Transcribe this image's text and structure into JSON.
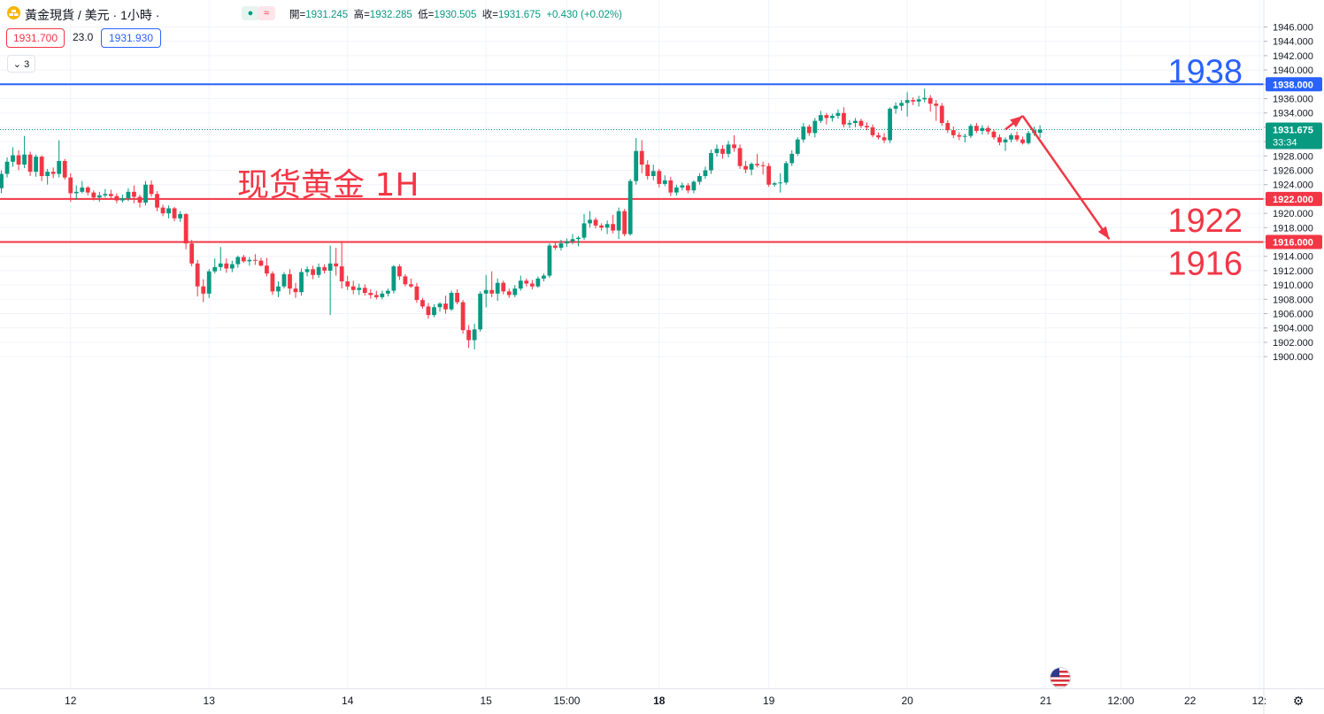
{
  "header": {
    "symbol_title": "黃金現貨 / 美元 · 1小時 ·",
    "badge_dot": "●",
    "badge_wave": "≈",
    "ohlc": [
      {
        "label": "開=",
        "value": "1931.245"
      },
      {
        "label": "高=",
        "value": "1932.285"
      },
      {
        "label": "低=",
        "value": "1930.505"
      },
      {
        "label": "收=",
        "value": "1931.675"
      },
      {
        "label": "",
        "value": "+0.430 (+0.02%)"
      }
    ],
    "sell_price": "1931.700",
    "spread": "23.0",
    "buy_price": "1931.930",
    "indicators_button": "⌄ 3"
  },
  "colors": {
    "up": "#089981",
    "down": "#f23645",
    "blue_line": "#2962ff",
    "red_line": "#f23645",
    "annotation_red": "#f23645",
    "annotation_blue": "#2962ff",
    "grid": "#f0f3fa"
  },
  "icons": {
    "symbol": "gold-coin-icon",
    "settings": "gear-icon",
    "event": "us-flag-icon"
  },
  "chart_data": {
    "type": "candlestick",
    "title": "现货黄金 1H",
    "ylim": [
      1900,
      1947
    ],
    "y_ticks": [
      "1946.000",
      "1944.000",
      "1942.000",
      "1940.000",
      "1938.000",
      "1936.000",
      "1934.000",
      "1932.000",
      "1930.000",
      "1928.000",
      "1926.000",
      "1924.000",
      "1922.000",
      "1920.000",
      "1918.000",
      "1916.000",
      "1914.000",
      "1912.000",
      "1910.000",
      "1908.000",
      "1906.000",
      "1904.000",
      "1902.000",
      "1900.000"
    ],
    "y_tick_values": [
      1946,
      1944,
      1942,
      1940,
      1938,
      1936,
      1934,
      1932,
      1930,
      1928,
      1926,
      1924,
      1922,
      1920,
      1918,
      1916,
      1914,
      1912,
      1910,
      1908,
      1906,
      1904,
      1902,
      1900
    ],
    "x_ticks": [
      {
        "label": "12",
        "bar": 12,
        "bold": false
      },
      {
        "label": "13",
        "bar": 36,
        "bold": false
      },
      {
        "label": "14",
        "bar": 60,
        "bold": false
      },
      {
        "label": "15",
        "bar": 84,
        "bold": false
      },
      {
        "label": "15:00",
        "bar": 98,
        "bold": false
      },
      {
        "label": "18",
        "bar": 114,
        "bold": true
      },
      {
        "label": "19",
        "bar": 133,
        "bold": false
      },
      {
        "label": "20",
        "bar": 157,
        "bold": false
      },
      {
        "label": "21",
        "bar": 181,
        "bold": false
      },
      {
        "label": "12:00",
        "bar": 194,
        "bold": false
      },
      {
        "label": "22",
        "bar": 206,
        "bold": false
      },
      {
        "label": "12:",
        "bar": 218,
        "bold": false
      }
    ],
    "candles": [
      [
        1923.5,
        1926.0,
        1922.8,
        1925.5
      ],
      [
        1925.5,
        1927.8,
        1925.0,
        1927.2
      ],
      [
        1927.2,
        1929.2,
        1926.5,
        1928.1
      ],
      [
        1928.1,
        1928.8,
        1926.0,
        1926.8
      ],
      [
        1926.8,
        1930.8,
        1926.3,
        1928.2
      ],
      [
        1928.2,
        1928.6,
        1925.2,
        1925.8
      ],
      [
        1925.8,
        1928.2,
        1925.1,
        1927.9
      ],
      [
        1927.9,
        1928.1,
        1924.5,
        1925.2
      ],
      [
        1925.2,
        1926.2,
        1924.0,
        1925.8
      ],
      [
        1925.8,
        1926.4,
        1924.9,
        1925.5
      ],
      [
        1925.5,
        1930.2,
        1925.0,
        1927.3
      ],
      [
        1927.3,
        1927.6,
        1924.7,
        1925.0
      ],
      [
        1925.0,
        1925.6,
        1921.6,
        1922.8
      ],
      [
        1922.8,
        1923.9,
        1921.9,
        1923.0
      ],
      [
        1923.0,
        1924.5,
        1922.8,
        1923.6
      ],
      [
        1923.6,
        1923.8,
        1922.5,
        1922.9
      ],
      [
        1922.9,
        1923.2,
        1921.8,
        1922.2
      ],
      [
        1922.2,
        1923.0,
        1921.6,
        1922.5
      ],
      [
        1922.5,
        1923.4,
        1922.2,
        1922.7
      ],
      [
        1922.7,
        1923.3,
        1922.0,
        1922.4
      ],
      [
        1922.4,
        1922.8,
        1921.4,
        1921.8
      ],
      [
        1921.8,
        1922.6,
        1921.5,
        1922.1
      ],
      [
        1922.1,
        1923.5,
        1921.7,
        1923.0
      ],
      [
        1923.0,
        1923.9,
        1921.4,
        1922.3
      ],
      [
        1922.3,
        1922.6,
        1920.8,
        1921.5
      ],
      [
        1921.5,
        1924.5,
        1921.1,
        1924.0
      ],
      [
        1924.0,
        1924.6,
        1922.3,
        1922.7
      ],
      [
        1922.7,
        1923.1,
        1920.3,
        1920.8
      ],
      [
        1920.8,
        1921.2,
        1919.6,
        1920.0
      ],
      [
        1920.0,
        1921.1,
        1919.3,
        1920.7
      ],
      [
        1920.7,
        1920.9,
        1918.9,
        1919.3
      ],
      [
        1919.3,
        1920.3,
        1918.8,
        1919.9
      ],
      [
        1919.9,
        1920.0,
        1915.0,
        1915.8
      ],
      [
        1915.8,
        1916.3,
        1912.6,
        1913.0
      ],
      [
        1913.0,
        1913.5,
        1908.4,
        1909.8
      ],
      [
        1909.8,
        1910.8,
        1907.6,
        1908.8
      ],
      [
        1908.8,
        1912.2,
        1908.2,
        1911.9
      ],
      [
        1911.9,
        1913.7,
        1911.6,
        1912.5
      ],
      [
        1912.5,
        1915.3,
        1912.0,
        1913.0
      ],
      [
        1913.0,
        1913.7,
        1911.7,
        1912.3
      ],
      [
        1912.3,
        1913.4,
        1911.8,
        1912.9
      ],
      [
        1912.9,
        1914.1,
        1912.4,
        1913.9
      ],
      [
        1913.9,
        1914.2,
        1913.1,
        1913.3
      ],
      [
        1913.3,
        1913.9,
        1912.7,
        1913.5
      ],
      [
        1913.5,
        1914.3,
        1912.8,
        1913.4
      ],
      [
        1913.4,
        1913.8,
        1912.6,
        1912.7
      ],
      [
        1912.7,
        1913.8,
        1911.2,
        1911.6
      ],
      [
        1911.6,
        1911.9,
        1908.6,
        1909.1
      ],
      [
        1909.1,
        1910.5,
        1908.3,
        1909.8
      ],
      [
        1909.8,
        1911.8,
        1909.5,
        1911.5
      ],
      [
        1911.5,
        1912.2,
        1908.7,
        1909.5
      ],
      [
        1909.5,
        1910.3,
        1908.2,
        1909.0
      ],
      [
        1909.0,
        1912.3,
        1908.5,
        1911.8
      ],
      [
        1911.8,
        1912.6,
        1911.2,
        1912.2
      ],
      [
        1912.2,
        1912.7,
        1910.8,
        1911.4
      ],
      [
        1911.4,
        1913.0,
        1911.0,
        1912.5
      ],
      [
        1912.5,
        1912.9,
        1911.6,
        1912.0
      ],
      [
        1912.0,
        1915.5,
        1905.8,
        1913.0
      ],
      [
        1913.0,
        1915.2,
        1911.3,
        1912.6
      ],
      [
        1912.6,
        1915.9,
        1909.5,
        1910.5
      ],
      [
        1910.5,
        1911.3,
        1909.3,
        1909.8
      ],
      [
        1909.8,
        1910.6,
        1908.7,
        1909.3
      ],
      [
        1909.3,
        1910.2,
        1908.6,
        1909.6
      ],
      [
        1909.6,
        1910.1,
        1908.5,
        1908.9
      ],
      [
        1908.9,
        1909.4,
        1908.1,
        1908.6
      ],
      [
        1908.6,
        1909.2,
        1908.0,
        1908.3
      ],
      [
        1908.3,
        1909.2,
        1908.0,
        1908.8
      ],
      [
        1908.8,
        1909.5,
        1908.4,
        1909.2
      ],
      [
        1909.2,
        1912.8,
        1908.8,
        1912.6
      ],
      [
        1912.6,
        1912.9,
        1910.7,
        1911.2
      ],
      [
        1911.2,
        1911.5,
        1909.8,
        1910.1
      ],
      [
        1910.1,
        1910.9,
        1909.6,
        1909.8
      ],
      [
        1909.8,
        1910.3,
        1907.5,
        1907.9
      ],
      [
        1907.9,
        1908.2,
        1906.7,
        1907.0
      ],
      [
        1907.0,
        1907.5,
        1905.3,
        1905.8
      ],
      [
        1905.8,
        1907.3,
        1905.5,
        1906.9
      ],
      [
        1906.9,
        1907.6,
        1906.3,
        1907.4
      ],
      [
        1907.4,
        1908.5,
        1906.0,
        1906.6
      ],
      [
        1906.6,
        1909.2,
        1906.4,
        1908.9
      ],
      [
        1908.9,
        1909.4,
        1907.3,
        1907.6
      ],
      [
        1907.6,
        1907.9,
        1903.2,
        1903.7
      ],
      [
        1903.7,
        1904.4,
        1901.2,
        1902.3
      ],
      [
        1902.3,
        1904.6,
        1901.0,
        1903.8
      ],
      [
        1903.8,
        1909.1,
        1903.5,
        1908.8
      ],
      [
        1908.8,
        1911.4,
        1906.9,
        1909.3
      ],
      [
        1909.3,
        1911.9,
        1908.3,
        1908.8
      ],
      [
        1908.8,
        1910.9,
        1907.8,
        1910.3
      ],
      [
        1910.3,
        1910.6,
        1908.7,
        1909.1
      ],
      [
        1909.1,
        1909.5,
        1908.2,
        1908.6
      ],
      [
        1908.6,
        1910.0,
        1908.3,
        1909.5
      ],
      [
        1909.5,
        1911.3,
        1909.2,
        1910.6
      ],
      [
        1910.6,
        1910.9,
        1909.8,
        1910.2
      ],
      [
        1910.2,
        1910.7,
        1909.4,
        1909.8
      ],
      [
        1909.8,
        1911.2,
        1909.6,
        1910.9
      ],
      [
        1910.9,
        1911.6,
        1910.5,
        1911.3
      ],
      [
        1911.3,
        1915.8,
        1911.0,
        1915.5
      ],
      [
        1915.5,
        1915.9,
        1914.9,
        1915.2
      ],
      [
        1915.2,
        1916.3,
        1914.8,
        1915.8
      ],
      [
        1915.8,
        1916.5,
        1915.3,
        1916.1
      ],
      [
        1916.1,
        1917.1,
        1915.7,
        1916.4
      ],
      [
        1916.4,
        1916.8,
        1915.4,
        1916.6
      ],
      [
        1916.6,
        1919.9,
        1916.3,
        1918.6
      ],
      [
        1918.6,
        1920.3,
        1918.0,
        1919.1
      ],
      [
        1919.1,
        1919.4,
        1917.9,
        1918.3
      ],
      [
        1918.3,
        1918.6,
        1917.6,
        1918.0
      ],
      [
        1918.0,
        1919.0,
        1917.1,
        1918.5
      ],
      [
        1918.5,
        1919.8,
        1917.2,
        1917.6
      ],
      [
        1917.6,
        1920.8,
        1916.4,
        1920.3
      ],
      [
        1920.3,
        1920.6,
        1916.8,
        1917.1
      ],
      [
        1917.1,
        1924.8,
        1916.9,
        1924.5
      ],
      [
        1924.5,
        1930.5,
        1924.0,
        1928.7
      ],
      [
        1928.7,
        1930.2,
        1925.6,
        1926.8
      ],
      [
        1926.8,
        1927.4,
        1924.7,
        1925.2
      ],
      [
        1925.2,
        1926.8,
        1924.6,
        1925.9
      ],
      [
        1925.9,
        1926.2,
        1923.6,
        1924.1
      ],
      [
        1924.1,
        1925.3,
        1923.8,
        1924.6
      ],
      [
        1924.6,
        1925.1,
        1922.4,
        1922.9
      ],
      [
        1922.9,
        1924.0,
        1922.5,
        1923.6
      ],
      [
        1923.6,
        1924.3,
        1923.2,
        1923.9
      ],
      [
        1923.9,
        1924.2,
        1922.8,
        1923.2
      ],
      [
        1923.2,
        1924.6,
        1922.8,
        1924.4
      ],
      [
        1924.4,
        1925.6,
        1924.0,
        1925.2
      ],
      [
        1925.2,
        1926.5,
        1924.8,
        1926.0
      ],
      [
        1926.0,
        1928.9,
        1925.5,
        1928.4
      ],
      [
        1928.4,
        1929.6,
        1927.9,
        1929.0
      ],
      [
        1929.0,
        1929.5,
        1927.6,
        1928.3
      ],
      [
        1928.3,
        1930.1,
        1927.8,
        1929.6
      ],
      [
        1929.6,
        1930.9,
        1928.6,
        1929.1
      ],
      [
        1929.1,
        1929.6,
        1926.2,
        1926.6
      ],
      [
        1926.6,
        1927.3,
        1925.6,
        1926.1
      ],
      [
        1926.1,
        1927.1,
        1925.3,
        1926.9
      ],
      [
        1926.9,
        1928.3,
        1926.4,
        1926.7
      ],
      [
        1926.7,
        1927.2,
        1925.4,
        1926.6
      ],
      [
        1926.6,
        1927.0,
        1923.7,
        1924.0
      ],
      [
        1924.0,
        1924.4,
        1923.7,
        1924.2
      ],
      [
        1924.2,
        1925.6,
        1922.9,
        1924.3
      ],
      [
        1924.3,
        1927.3,
        1924.0,
        1927.0
      ],
      [
        1927.0,
        1928.8,
        1926.6,
        1928.3
      ],
      [
        1928.3,
        1930.6,
        1928.0,
        1930.3
      ],
      [
        1930.3,
        1932.6,
        1929.9,
        1932.1
      ],
      [
        1932.1,
        1932.4,
        1930.8,
        1931.2
      ],
      [
        1931.2,
        1933.3,
        1930.6,
        1932.9
      ],
      [
        1932.9,
        1934.3,
        1932.6,
        1933.7
      ],
      [
        1933.7,
        1934.0,
        1932.4,
        1933.3
      ],
      [
        1933.3,
        1933.9,
        1932.8,
        1933.6
      ],
      [
        1933.6,
        1934.5,
        1933.2,
        1934.0
      ],
      [
        1934.0,
        1934.8,
        1932.0,
        1932.4
      ],
      [
        1932.4,
        1933.0,
        1931.9,
        1932.6
      ],
      [
        1932.6,
        1933.3,
        1932.0,
        1932.9
      ],
      [
        1932.9,
        1933.2,
        1931.9,
        1932.2
      ],
      [
        1932.2,
        1932.7,
        1931.6,
        1932.0
      ],
      [
        1932.0,
        1932.4,
        1930.6,
        1930.9
      ],
      [
        1930.9,
        1931.3,
        1930.3,
        1930.6
      ],
      [
        1930.6,
        1931.2,
        1929.8,
        1930.2
      ],
      [
        1930.2,
        1934.8,
        1929.8,
        1934.6
      ],
      [
        1934.6,
        1935.5,
        1933.9,
        1935.0
      ],
      [
        1935.0,
        1935.8,
        1934.3,
        1935.4
      ],
      [
        1935.4,
        1936.9,
        1933.5,
        1935.8
      ],
      [
        1935.8,
        1936.2,
        1935.1,
        1935.6
      ],
      [
        1935.6,
        1936.4,
        1934.9,
        1935.9
      ],
      [
        1935.9,
        1937.4,
        1935.5,
        1936.1
      ],
      [
        1936.1,
        1936.5,
        1934.2,
        1935.3
      ],
      [
        1935.3,
        1935.8,
        1932.9,
        1935.0
      ],
      [
        1935.0,
        1935.4,
        1932.2,
        1932.6
      ],
      [
        1932.6,
        1933.0,
        1931.2,
        1931.6
      ],
      [
        1931.6,
        1932.1,
        1930.5,
        1930.9
      ],
      [
        1930.9,
        1931.3,
        1930.2,
        1930.7
      ],
      [
        1930.7,
        1931.1,
        1929.9,
        1930.8
      ],
      [
        1930.8,
        1932.5,
        1930.5,
        1932.2
      ],
      [
        1932.2,
        1932.6,
        1931.2,
        1931.5
      ],
      [
        1931.5,
        1932.3,
        1931.0,
        1931.9
      ],
      [
        1931.9,
        1932.2,
        1931.0,
        1931.4
      ],
      [
        1931.4,
        1931.7,
        1930.3,
        1930.6
      ],
      [
        1930.6,
        1931.0,
        1929.5,
        1929.9
      ],
      [
        1929.9,
        1930.6,
        1928.7,
        1930.3
      ],
      [
        1930.3,
        1931.2,
        1929.9,
        1930.9
      ],
      [
        1930.9,
        1931.4,
        1930.0,
        1930.3
      ],
      [
        1930.3,
        1930.7,
        1929.6,
        1929.8
      ],
      [
        1929.8,
        1931.5,
        1929.6,
        1931.2
      ],
      [
        1931.2,
        1932.1,
        1930.8,
        1931.6
      ],
      [
        1931.245,
        1932.285,
        1930.505,
        1931.675
      ]
    ],
    "hlines": [
      {
        "value": 1938,
        "color": "#2962ff",
        "label": "1938",
        "axis_label": "1938.000"
      },
      {
        "value": 1922,
        "color": "#f23645",
        "label": "1922",
        "axis_label": "1922.000"
      },
      {
        "value": 1916,
        "color": "#f23645",
        "label": "1916",
        "axis_label": "1916.000"
      }
    ],
    "current_price": {
      "value": 1931.675,
      "label": "1931.675",
      "countdown": "33:34"
    },
    "projection": [
      {
        "bar": 174,
        "price": 1931.7
      },
      {
        "bar": 177,
        "price": 1933.6
      },
      {
        "bar": 192,
        "price": 1916.4
      }
    ]
  }
}
